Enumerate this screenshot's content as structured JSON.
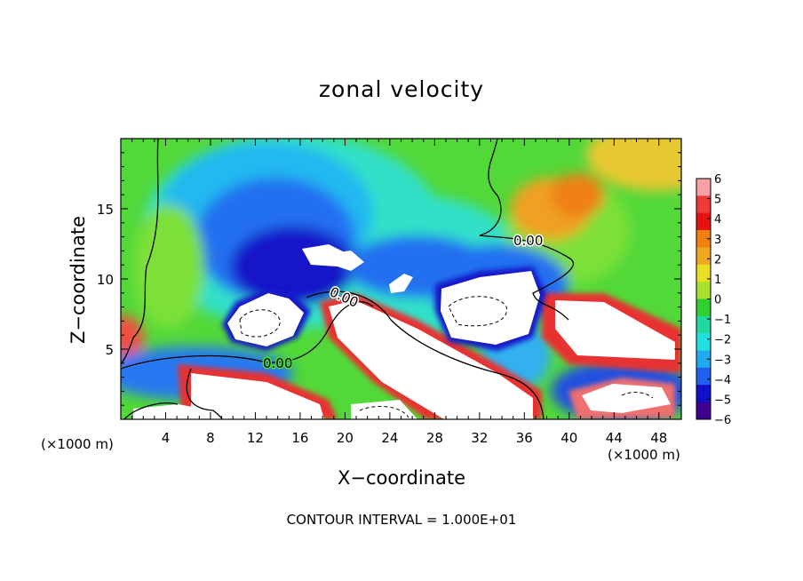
{
  "chart_data": {
    "type": "heatmap",
    "title": "zonal velocity",
    "xlabel": "X−coordinate",
    "ylabel": "Z−coordinate",
    "x_unit_left": "(×1000 m)",
    "x_unit_right": "(×1000 m)",
    "x_ticks": [
      4,
      8,
      12,
      16,
      20,
      24,
      28,
      32,
      36,
      40,
      44,
      48
    ],
    "y_ticks": [
      5,
      10,
      15
    ],
    "xlim": [
      0,
      50
    ],
    "ylim": [
      0,
      20
    ],
    "colorbar": {
      "ticks": [
        "6",
        "5",
        "4",
        "3",
        "2",
        "1",
        "0",
        "−1",
        "−2",
        "−3",
        "−4",
        "−5",
        "−6"
      ],
      "range": [
        -6,
        6
      ],
      "colors": [
        "#f4a0a4",
        "#f03a3a",
        "#e81212",
        "#f08010",
        "#f0a820",
        "#e8e020",
        "#a8e030",
        "#30d030",
        "#20d8a0",
        "#20e0e0",
        "#20a8f0",
        "#2060f0",
        "#1010c8",
        "#400090"
      ]
    },
    "contour_labels": [
      "0.00",
      "0.00",
      "0.00"
    ],
    "footnote": "CONTOUR INTERVAL = 1.000E+01"
  }
}
